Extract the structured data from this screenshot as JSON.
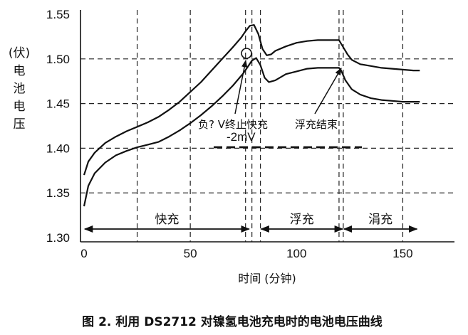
{
  "chart_data": {
    "type": "line",
    "x_ticks": [
      "0",
      "50",
      "100",
      "150"
    ],
    "y_ticks": [
      "1.30",
      "1.35",
      "1.40",
      "1.45",
      "1.50",
      "1.55"
    ],
    "xlim": [
      0,
      175
    ],
    "ylim": [
      1.3,
      1.55
    ],
    "xlabel": "时间 (分钟)",
    "ylabel": [
      "(伏)",
      "电",
      "池",
      "电",
      "压"
    ],
    "grid": true,
    "series": [
      {
        "x": [
          0,
          2,
          5,
          10,
          15,
          20,
          25,
          30,
          35,
          40,
          45,
          50,
          55,
          60,
          65,
          70,
          74,
          76,
          78,
          80,
          82,
          84,
          86,
          88,
          90,
          95,
          100,
          105,
          110,
          115,
          120,
          122,
          124,
          126,
          130,
          135,
          140,
          145,
          150,
          155,
          158
        ],
        "y": [
          1.37,
          1.385,
          1.395,
          1.406,
          1.413,
          1.419,
          1.424,
          1.429,
          1.435,
          1.443,
          1.452,
          1.463,
          1.474,
          1.487,
          1.5,
          1.513,
          1.524,
          1.531,
          1.537,
          1.538,
          1.528,
          1.511,
          1.504,
          1.505,
          1.509,
          1.514,
          1.518,
          1.52,
          1.521,
          1.521,
          1.521,
          1.513,
          1.505,
          1.499,
          1.494,
          1.492,
          1.49,
          1.489,
          1.488,
          1.487,
          1.487
        ]
      },
      {
        "x": [
          0,
          2,
          5,
          10,
          15,
          20,
          25,
          30,
          35,
          40,
          45,
          50,
          55,
          60,
          65,
          70,
          75,
          77,
          79,
          81,
          83,
          85,
          87,
          90,
          95,
          100,
          105,
          110,
          115,
          120,
          121,
          123,
          126,
          130,
          135,
          140,
          145,
          150,
          155,
          158
        ],
        "y": [
          1.335,
          1.358,
          1.372,
          1.384,
          1.392,
          1.397,
          1.401,
          1.404,
          1.407,
          1.413,
          1.42,
          1.428,
          1.437,
          1.447,
          1.458,
          1.47,
          1.484,
          1.491,
          1.498,
          1.501,
          1.493,
          1.479,
          1.474,
          1.476,
          1.483,
          1.486,
          1.489,
          1.49,
          1.49,
          1.49,
          1.487,
          1.476,
          1.466,
          1.46,
          1.456,
          1.454,
          1.453,
          1.452,
          1.452,
          1.452
        ]
      }
    ],
    "vlines": [
      25,
      50,
      76,
      79,
      83,
      120,
      122,
      150
    ],
    "phases": [
      {
        "label": "快充",
        "from": 0,
        "to": 78
      },
      {
        "label": "浮充",
        "from": 83,
        "to": 122
      },
      {
        "label": "涓充",
        "from": 122,
        "to": 157
      }
    ],
    "annotations": {
      "label1_a": "负? V终止快充",
      "label1_b": "-2mV",
      "label2": "浮充结束"
    },
    "caption": "图 2. 利用 DS2712 对镍氢电池充电时的电池电压曲线"
  }
}
